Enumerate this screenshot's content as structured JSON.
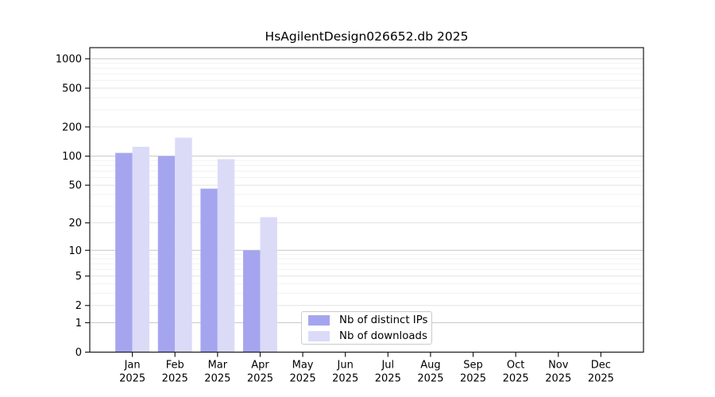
{
  "chart_data": {
    "type": "bar",
    "title": "HsAgilentDesign026652.db 2025",
    "categories": [
      "Jan",
      "Feb",
      "Mar",
      "Apr",
      "May",
      "Jun",
      "Jul",
      "Aug",
      "Sep",
      "Oct",
      "Nov",
      "Dec"
    ],
    "x_year": "2025",
    "series": [
      {
        "name": "Nb of distinct IPs",
        "color": "#a5a5ef",
        "values": [
          108,
          100,
          46,
          10,
          0,
          0,
          0,
          0,
          0,
          0,
          0,
          0
        ]
      },
      {
        "name": "Nb of downloads",
        "color": "#dbdbf8",
        "values": [
          125,
          155,
          93,
          23,
          0,
          0,
          0,
          0,
          0,
          0,
          0,
          0
        ]
      }
    ],
    "yscale": "log1p",
    "y_ticks": [
      0,
      1,
      2,
      5,
      10,
      20,
      50,
      100,
      200,
      500,
      1000
    ],
    "ylim": [
      0,
      1300
    ],
    "grid": true,
    "legend_position": "lower left-of-center",
    "colors": {
      "grid_decade": "#c6c6c6",
      "grid_labeled": "#e3e3e3",
      "grid_minor": "#f2f2f2",
      "axis": "#1a1a1a",
      "tick_label": "#000000",
      "background": "#ffffff"
    }
  }
}
